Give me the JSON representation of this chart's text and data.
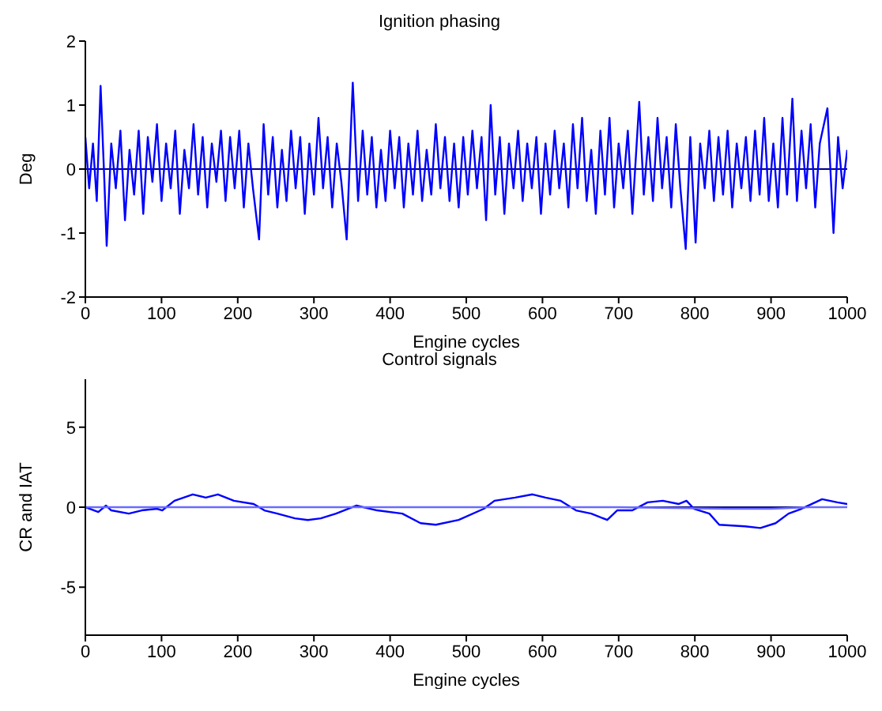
{
  "chart_data": [
    {
      "type": "line",
      "title": "Ignition phasing",
      "xlabel": "Engine cycles",
      "ylabel": "Deg",
      "xlim": [
        0,
        1000
      ],
      "xticks": [
        0,
        100,
        200,
        300,
        400,
        500,
        600,
        700,
        800,
        900,
        1000
      ],
      "ylim": [
        -2,
        2
      ],
      "yticks": [
        -2,
        -1,
        0,
        1,
        2
      ],
      "marker": "none",
      "line_style": "solid",
      "ref_lines": [
        {
          "axis": "y",
          "value": 0,
          "color": "#000080"
        }
      ],
      "series": [
        {
          "color": "#0000ff",
          "x": [
            0,
            5,
            10,
            15,
            20,
            25,
            28,
            34,
            40,
            46,
            52,
            58,
            64,
            70,
            76,
            82,
            88,
            94,
            100,
            106,
            112,
            118,
            124,
            130,
            136,
            142,
            148,
            154,
            160,
            166,
            172,
            178,
            184,
            190,
            196,
            202,
            208,
            214,
            220,
            228,
            234,
            240,
            246,
            252,
            258,
            264,
            270,
            276,
            282,
            288,
            294,
            300,
            306,
            312,
            318,
            324,
            330,
            336,
            343,
            351,
            358,
            364,
            370,
            376,
            382,
            388,
            394,
            400,
            406,
            412,
            418,
            424,
            430,
            436,
            442,
            448,
            454,
            460,
            466,
            472,
            478,
            484,
            490,
            496,
            502,
            508,
            514,
            520,
            526,
            532,
            538,
            544,
            550,
            556,
            562,
            568,
            574,
            580,
            586,
            592,
            598,
            604,
            610,
            616,
            622,
            628,
            634,
            640,
            646,
            652,
            658,
            664,
            670,
            676,
            682,
            688,
            694,
            700,
            706,
            712,
            718,
            727,
            733,
            739,
            745,
            751,
            757,
            763,
            769,
            775,
            781,
            788,
            794,
            801,
            807,
            813,
            819,
            825,
            831,
            837,
            843,
            849,
            855,
            861,
            867,
            873,
            879,
            885,
            891,
            897,
            903,
            909,
            915,
            921,
            928,
            934,
            940,
            946,
            952,
            958,
            964,
            974,
            982,
            988,
            994,
            1000
          ],
          "values": [
            0.5,
            -0.3,
            0.4,
            -0.5,
            1.3,
            -0.2,
            -1.2,
            0.4,
            -0.3,
            0.6,
            -0.8,
            0.3,
            -0.4,
            0.6,
            -0.7,
            0.5,
            -0.2,
            0.7,
            -0.5,
            0.4,
            -0.3,
            0.6,
            -0.7,
            0.3,
            -0.3,
            0.7,
            -0.4,
            0.5,
            -0.6,
            0.4,
            -0.2,
            0.6,
            -0.5,
            0.5,
            -0.3,
            0.6,
            -0.6,
            0.4,
            -0.3,
            -1.1,
            0.7,
            -0.4,
            0.5,
            -0.6,
            0.3,
            -0.5,
            0.6,
            -0.3,
            0.5,
            -0.7,
            0.4,
            -0.4,
            0.8,
            -0.3,
            0.5,
            -0.6,
            0.4,
            -0.2,
            -1.1,
            1.35,
            -0.5,
            0.6,
            -0.4,
            0.5,
            -0.6,
            0.3,
            -0.5,
            0.6,
            -0.3,
            0.5,
            -0.6,
            0.4,
            -0.4,
            0.6,
            -0.5,
            0.3,
            -0.4,
            0.7,
            -0.3,
            0.5,
            -0.5,
            0.4,
            -0.6,
            0.5,
            -0.4,
            0.6,
            -0.3,
            0.5,
            -0.8,
            1.0,
            -0.4,
            0.5,
            -0.7,
            0.4,
            -0.3,
            0.6,
            -0.5,
            0.4,
            -0.3,
            0.5,
            -0.7,
            0.4,
            -0.4,
            0.6,
            -0.3,
            0.4,
            -0.6,
            0.7,
            -0.3,
            0.8,
            -0.5,
            0.3,
            -0.7,
            0.6,
            -0.4,
            0.8,
            -0.6,
            0.4,
            -0.3,
            0.6,
            -0.7,
            1.05,
            -0.4,
            0.5,
            -0.5,
            0.8,
            -0.3,
            0.5,
            -0.6,
            0.7,
            -0.3,
            -1.25,
            0.5,
            -1.15,
            0.4,
            -0.3,
            0.6,
            -0.5,
            0.5,
            -0.4,
            0.6,
            -0.6,
            0.4,
            -0.3,
            0.5,
            -0.5,
            0.6,
            -0.4,
            0.8,
            -0.5,
            0.4,
            -0.6,
            0.8,
            -0.4,
            1.1,
            -0.5,
            0.6,
            -0.3,
            0.7,
            -0.6,
            0.4,
            0.95,
            -1.0,
            0.5,
            -0.3,
            0.3
          ]
        }
      ]
    },
    {
      "type": "line",
      "title": "Control signals",
      "xlabel": "Engine cycles",
      "ylabel": "CR and IAT",
      "xlim": [
        0,
        1000
      ],
      "xticks": [
        0,
        100,
        200,
        300,
        400,
        500,
        600,
        700,
        800,
        900,
        1000
      ],
      "ylim": [
        -8,
        8
      ],
      "yticks": [
        -5,
        0,
        5
      ],
      "marker": "none",
      "line_style": "solid",
      "ref_lines": [
        {
          "axis": "y",
          "value": 0,
          "color": "#000080"
        }
      ],
      "series": [
        {
          "color": "#0000ff",
          "x": [
            0,
            17,
            27,
            34,
            57,
            74,
            94,
            101,
            117,
            141,
            158,
            174,
            195,
            221,
            235,
            252,
            275,
            292,
            309,
            329,
            356,
            383,
            416,
            440,
            460,
            490,
            523,
            537,
            564,
            587,
            604,
            624,
            644,
            664,
            685,
            698,
            718,
            738,
            758,
            779,
            789,
            799,
            819,
            832,
            866,
            886,
            906,
            923,
            940,
            967,
            987,
            1000
          ],
          "values": [
            0,
            -0.3,
            0.1,
            -0.2,
            -0.4,
            -0.2,
            -0.1,
            -0.2,
            0.4,
            0.8,
            0.6,
            0.8,
            0.4,
            0.2,
            -0.2,
            -0.4,
            -0.7,
            -0.8,
            -0.7,
            -0.4,
            0.1,
            -0.2,
            -0.4,
            -1.0,
            -1.1,
            -0.8,
            -0.1,
            0.4,
            0.6,
            0.8,
            0.6,
            0.4,
            -0.2,
            -0.4,
            -0.8,
            -0.2,
            -0.2,
            0.3,
            0.4,
            0.2,
            0.4,
            -0.1,
            -0.4,
            -1.1,
            -1.2,
            -1.3,
            -1.0,
            -0.4,
            -0.1,
            0.5,
            0.3,
            0.2
          ]
        },
        {
          "color": "#6a6aff",
          "x": [
            0,
            300,
            500,
            700,
            840,
            900,
            950,
            1000
          ],
          "values": [
            0,
            0,
            0,
            0,
            -0.1,
            -0.1,
            0,
            0
          ]
        }
      ]
    }
  ]
}
